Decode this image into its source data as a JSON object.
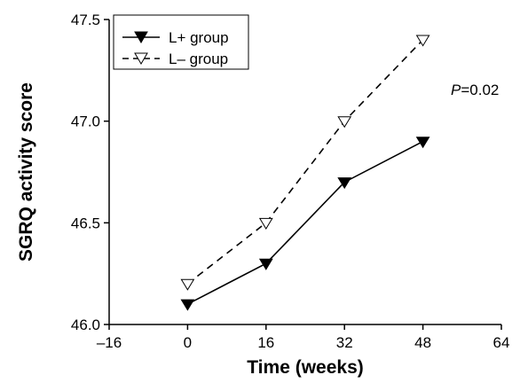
{
  "chart_data": {
    "type": "line",
    "xlabel": "Time (weeks)",
    "ylabel": "SGRQ activity score",
    "xlim": [
      -16,
      64
    ],
    "ylim": [
      46.0,
      47.5
    ],
    "x_ticks": [
      "–16",
      "0",
      "16",
      "32",
      "48",
      "64"
    ],
    "x_tick_values": [
      -16,
      0,
      16,
      32,
      48,
      64
    ],
    "y_ticks": [
      "46.0",
      "46.5",
      "47.0",
      "47.5"
    ],
    "y_tick_values": [
      46.0,
      46.5,
      47.0,
      47.5
    ],
    "grid": false,
    "legend_position": "top-left",
    "annotation": {
      "italic_part": "P",
      "rest": "=0.02"
    },
    "series": [
      {
        "name": "L+ group",
        "line_style": "solid",
        "marker": "filled-down-triangle",
        "x": [
          0,
          16,
          32,
          48
        ],
        "y": [
          46.1,
          46.3,
          46.7,
          46.9
        ]
      },
      {
        "name": "L– group",
        "line_style": "dashed",
        "marker": "open-down-triangle",
        "x": [
          0,
          16,
          32,
          48
        ],
        "y": [
          46.2,
          46.5,
          47.0,
          47.4
        ]
      }
    ]
  }
}
